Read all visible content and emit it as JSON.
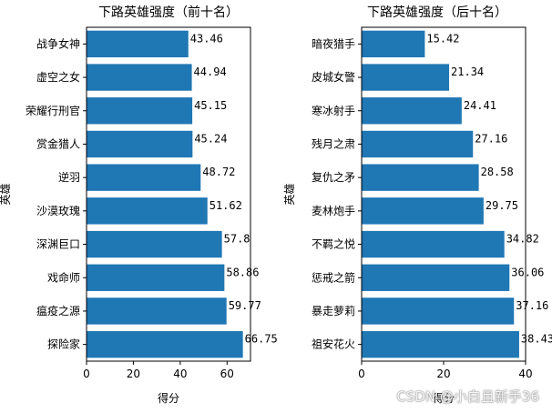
{
  "chart_data": [
    {
      "type": "bar",
      "orientation": "horizontal",
      "title": "下路英雄强度（前十名）",
      "xlabel": "得分",
      "ylabel": "英雄",
      "xlim": [
        0,
        70
      ],
      "xticks": [
        "0",
        "20",
        "40",
        "60"
      ],
      "categories": [
        "探险家",
        "瘟疫之源",
        "戏命师",
        "深渊巨口",
        "沙漠玫瑰",
        "逆羽",
        "赏金猎人",
        "荣耀行刑官",
        "虚空之女",
        "战争女神"
      ],
      "values": [
        66.75,
        59.77,
        58.86,
        57.8,
        51.62,
        48.72,
        45.24,
        45.15,
        44.94,
        43.46
      ],
      "value_labels": [
        "66.75",
        "59.77",
        "58.86",
        "57.8",
        "51.62",
        "48.72",
        "45.24",
        "45.15",
        "44.94",
        "43.46"
      ],
      "bar_color": "#1f77b4",
      "grid": false
    },
    {
      "type": "bar",
      "orientation": "horizontal",
      "title": "下路英雄强度（后十名）",
      "xlabel": "得分",
      "ylabel": "英雄",
      "xlim": [
        0,
        40
      ],
      "xticks": [
        "0",
        "20",
        "40"
      ],
      "categories": [
        "祖安花火",
        "暴走萝莉",
        "惩戒之箭",
        "不羁之悦",
        "麦林炮手",
        "复仇之矛",
        "残月之肃",
        "寒冰射手",
        "皮城女警",
        "暗夜猎手"
      ],
      "values": [
        38.43,
        37.16,
        36.06,
        34.82,
        29.75,
        28.58,
        27.16,
        24.41,
        21.34,
        15.42
      ],
      "value_labels": [
        "38.43",
        "37.16",
        "36.06",
        "34.82",
        "29.75",
        "28.58",
        "27.16",
        "24.41",
        "21.34",
        "15.42"
      ],
      "bar_color": "#1f77b4",
      "grid": false
    }
  ],
  "watermark": "CSDN @小白且新手36"
}
